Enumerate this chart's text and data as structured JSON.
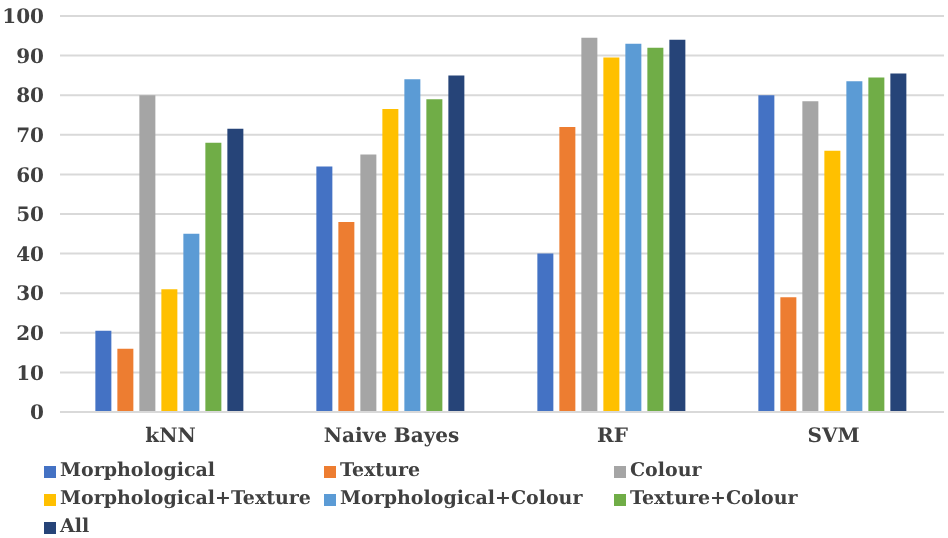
{
  "chart_data": {
    "type": "bar",
    "categories": [
      "kNN",
      "Naive Bayes",
      "RF",
      "SVM"
    ],
    "series": [
      {
        "name": "Morphological",
        "color": "#4472c4",
        "values": [
          20.5,
          62,
          40,
          80
        ]
      },
      {
        "name": "Texture",
        "color": "#ed7d31",
        "values": [
          16,
          48,
          72,
          29
        ]
      },
      {
        "name": "Colour",
        "color": "#a5a5a5",
        "values": [
          80,
          65,
          94.5,
          78.5
        ]
      },
      {
        "name": "Morphological+Texture",
        "color": "#ffc000",
        "values": [
          31,
          76.5,
          89.5,
          66
        ]
      },
      {
        "name": "Morphological+Colour",
        "color": "#5b9bd5",
        "values": [
          45,
          84,
          93,
          83.5
        ]
      },
      {
        "name": "Texture+Colour",
        "color": "#70ad47",
        "values": [
          68,
          79,
          92,
          84.5
        ]
      },
      {
        "name": "All",
        "color": "#264478",
        "values": [
          71.5,
          85,
          94,
          85.5
        ]
      }
    ],
    "ylim": [
      0,
      100
    ],
    "yticks": [
      0,
      10,
      20,
      30,
      40,
      50,
      60,
      70,
      80,
      90,
      100
    ],
    "grid": "y",
    "legend": "bottom"
  }
}
